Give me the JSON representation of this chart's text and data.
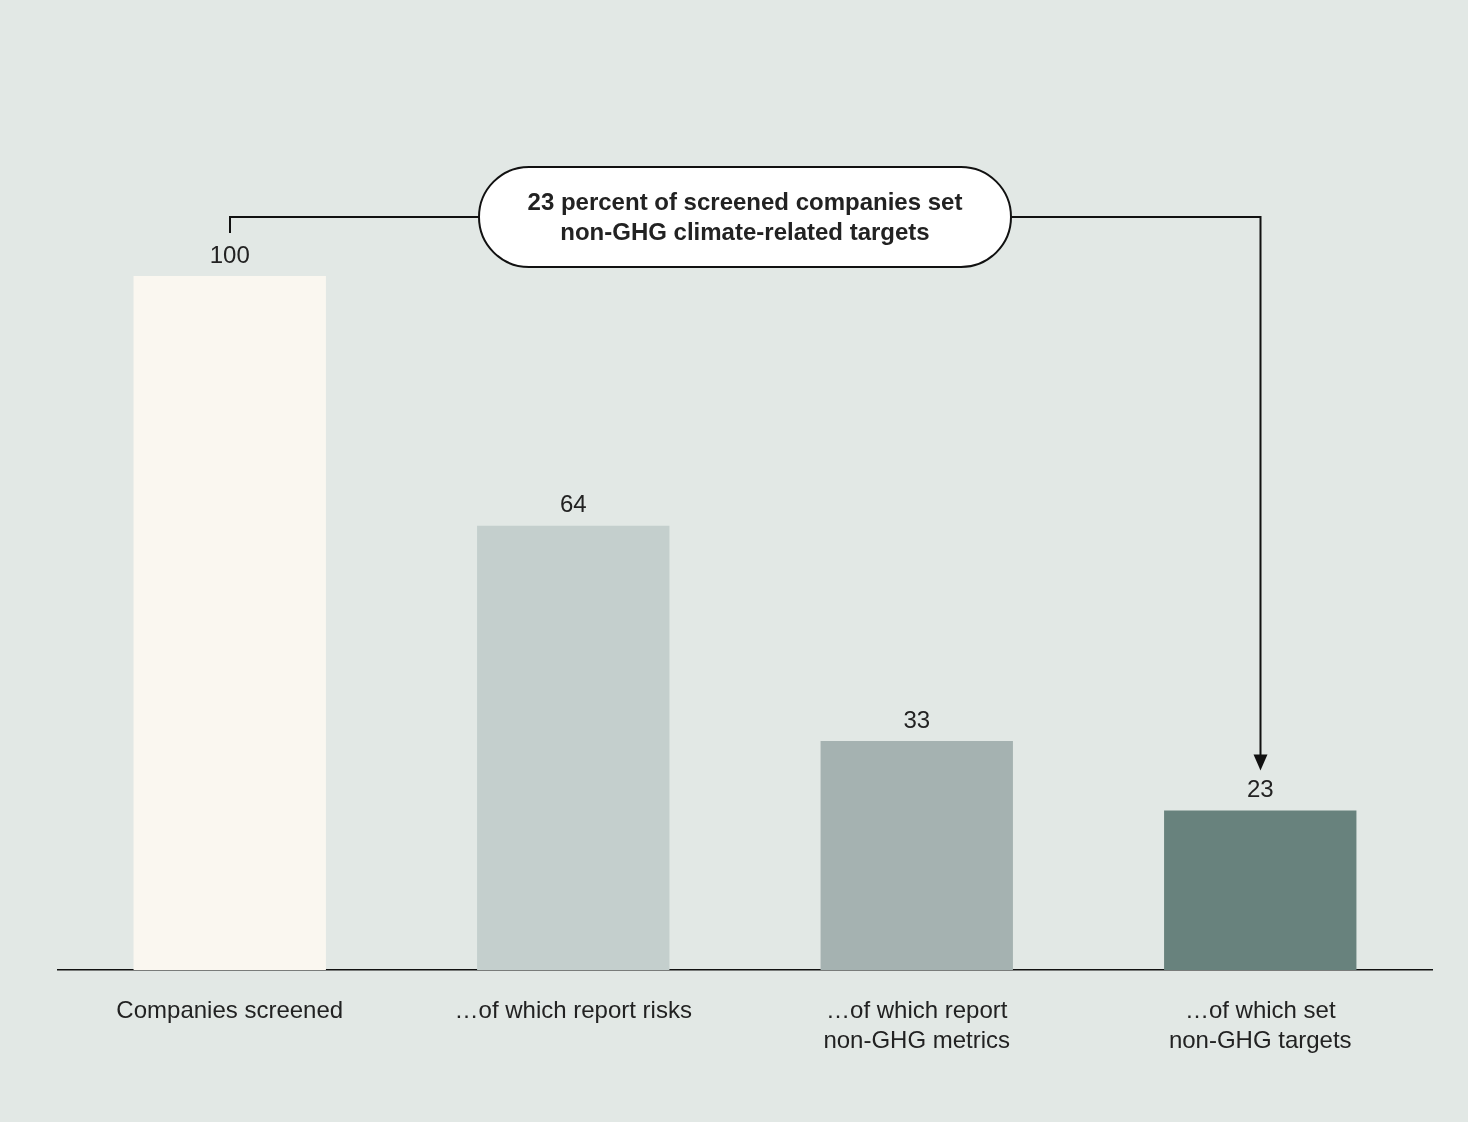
{
  "chart_data": {
    "type": "bar",
    "categories": [
      "Companies screened",
      "…of which report risks",
      "…of which report non-GHG metrics",
      "…of which set non-GHG targets"
    ],
    "values": [
      100,
      64,
      33,
      23
    ],
    "colors": [
      "#faf7f0",
      "#c4cfcd",
      "#a5b2b1",
      "#68827d"
    ],
    "data_labels": true,
    "grid": false,
    "legend": false,
    "annotations": [
      "23 percent of screened companies set non-GHG climate-related targets"
    ]
  }
}
